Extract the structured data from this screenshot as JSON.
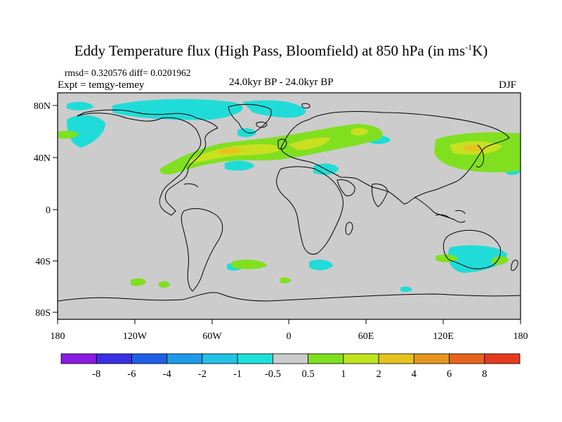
{
  "header": {
    "title_main": "Eddy Temperature flux (High Pass, Bloomfield) at 850 hPa (in ms",
    "title_sup": "-1",
    "title_end": "K)",
    "rmsd_line": "rmsd= 0.320576 diff= 0.0201962",
    "expt_line": "Expt = temgy-temey",
    "center_label": "24.0kyr BP - 24.0kyr BP",
    "season": "DJF"
  },
  "map": {
    "x_ticks": [
      "180",
      "120W",
      "60W",
      "0",
      "60E",
      "120E",
      "180"
    ],
    "y_ticks": [
      "80N",
      "40N",
      "0",
      "40S",
      "80S"
    ]
  },
  "legend": {
    "labels": [
      "-8",
      "-6",
      "-4",
      "-2",
      "-1",
      "-0.5",
      "0.5",
      "1",
      "2",
      "4",
      "6",
      "8"
    ],
    "colors": [
      "#8a1be0",
      "#3a2fe0",
      "#1f60e6",
      "#1e9be8",
      "#22c3e6",
      "#1fe0d8",
      "#cccccc",
      "#7fe01e",
      "#c0e41e",
      "#e6c41e",
      "#e6961e",
      "#e6641e",
      "#e63a1e"
    ]
  },
  "colors": {
    "ocean_land": "#cccccc",
    "cyan": "#1fdcd8",
    "green": "#80e020",
    "yellow": "#c8e020",
    "orange": "#e6c41e"
  }
}
